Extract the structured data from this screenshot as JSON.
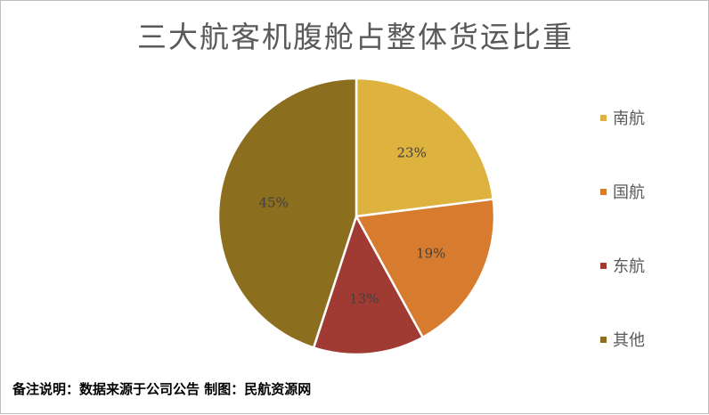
{
  "chart_data": {
    "type": "pie",
    "title": "三大航客机腹舱占整体货运比重",
    "categories": [
      "南航",
      "国航",
      "东航",
      "其他"
    ],
    "values": [
      23,
      19,
      13,
      45
    ],
    "data_labels": [
      "23%",
      "19%",
      "13%",
      "45%"
    ],
    "colors": [
      "#DDB23F",
      "#D77B2E",
      "#A03B33",
      "#8B6E1E"
    ],
    "legend_position": "right",
    "start_angle_deg": 0,
    "direction": "clockwise"
  },
  "legend": {
    "items": [
      {
        "label": "南航",
        "color": "#DDB23F"
      },
      {
        "label": "国航",
        "color": "#D77B2E"
      },
      {
        "label": "东航",
        "color": "#A03B33"
      },
      {
        "label": "其他",
        "color": "#8B6E1E"
      }
    ]
  },
  "footer": {
    "note": "备注说明：数据来源于公司公告 制图：民航资源网"
  }
}
